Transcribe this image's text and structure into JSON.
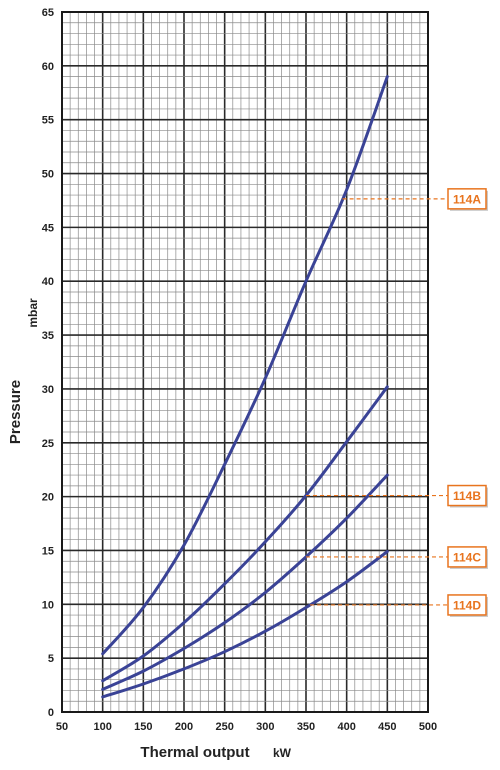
{
  "chart_data": {
    "type": "line",
    "xlabel": "Thermal output",
    "xunit": "kW",
    "ylabel": "Pressure",
    "yunit": "mbar",
    "xlim": [
      50,
      500
    ],
    "ylim": [
      0,
      65
    ],
    "xticks": [
      50,
      100,
      150,
      200,
      250,
      300,
      350,
      400,
      450,
      500
    ],
    "yticks": [
      0,
      5,
      10,
      15,
      20,
      25,
      30,
      35,
      40,
      45,
      50,
      55,
      60,
      65
    ],
    "grid": true,
    "line_color": "#3a4396",
    "tag_color": "#e8741e",
    "x": [
      100,
      150,
      200,
      250,
      300,
      350,
      400,
      450
    ],
    "series": [
      {
        "name": "114A",
        "values": [
          5.4,
          9.7,
          15.5,
          23,
          31,
          40,
          48.5,
          59
        ]
      },
      {
        "name": "114B",
        "values": [
          2.9,
          5.2,
          8.3,
          11.9,
          15.8,
          20.1,
          25.1,
          30.2
        ]
      },
      {
        "name": "114C",
        "values": [
          2.1,
          3.8,
          5.9,
          8.3,
          11.1,
          14.4,
          18.0,
          22.0
        ]
      },
      {
        "name": "114D",
        "values": [
          1.4,
          2.6,
          4.0,
          5.6,
          7.5,
          9.7,
          12.1,
          14.9
        ]
      }
    ],
    "label_anchor_x": [
      395,
      350,
      350,
      355
    ]
  }
}
